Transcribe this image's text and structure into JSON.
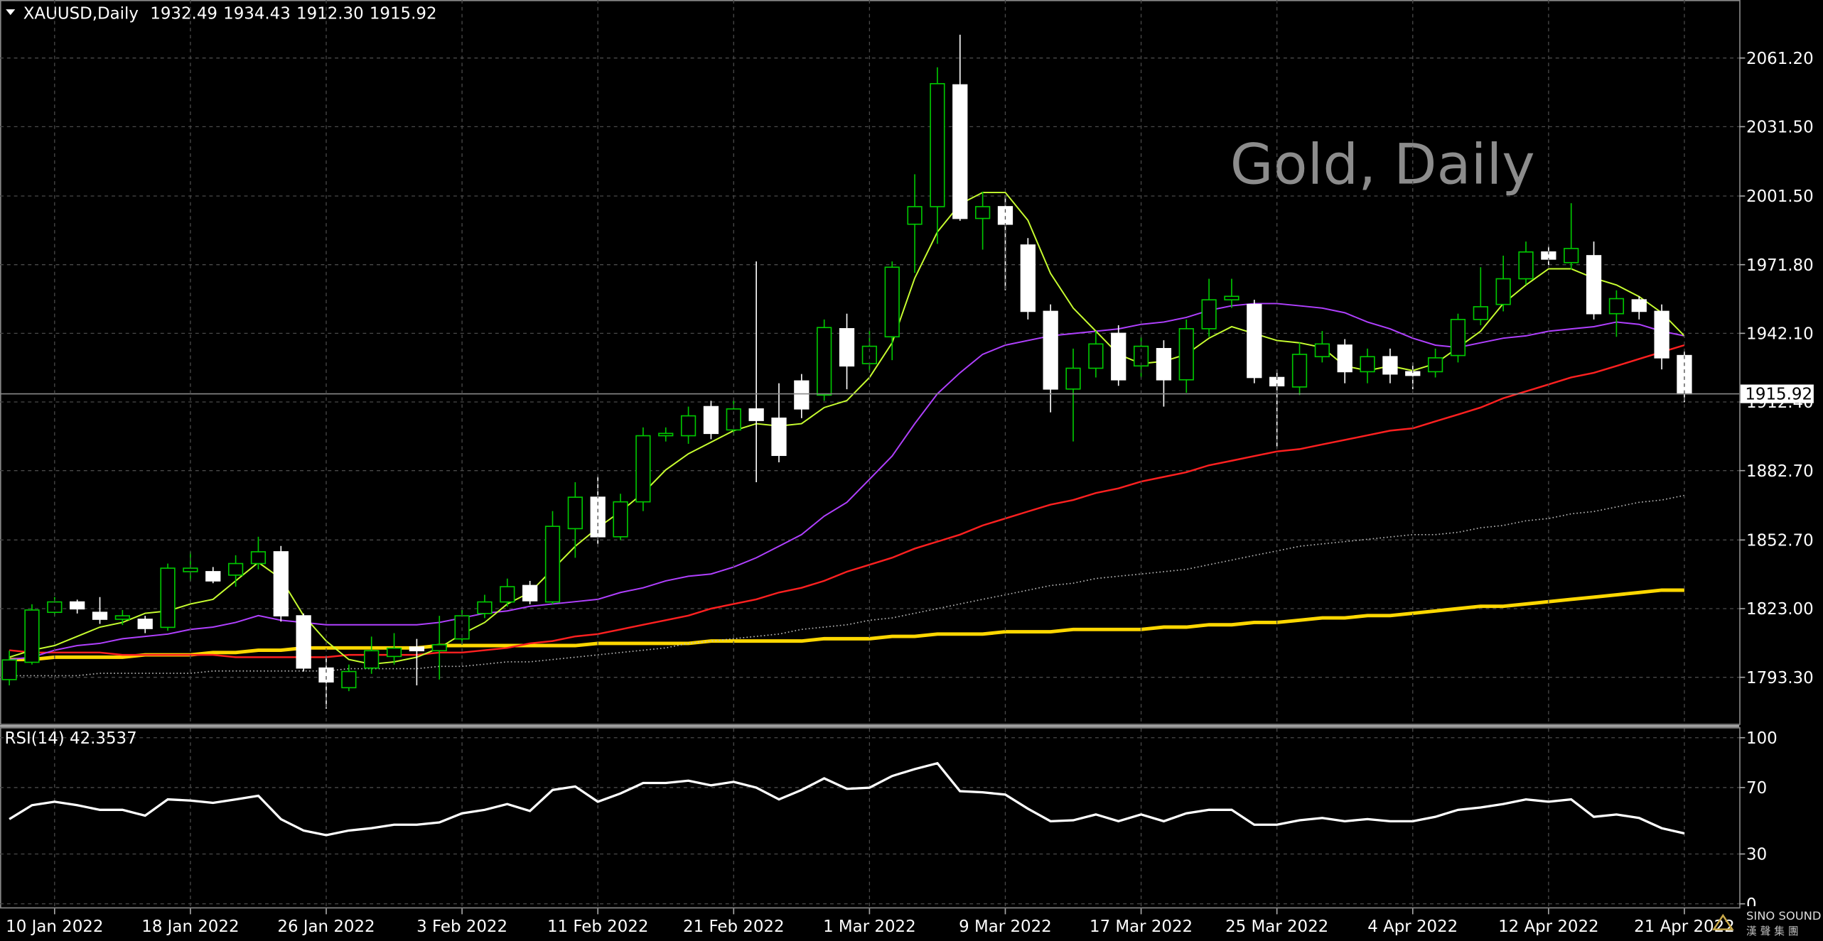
{
  "chart_data": [
    {
      "type": "candlestick",
      "title": "XAUUSD,Daily",
      "header_ohlc": [
        "1932.49",
        "1934.43",
        "1912.30",
        "1915.92"
      ],
      "watermark": "Gold, Daily",
      "categories": [
        null,
        null,
        "10 Jan 2022",
        null,
        null,
        null,
        null,
        null,
        "18 Jan 2022",
        null,
        null,
        null,
        null,
        null,
        "26 Jan 2022",
        null,
        null,
        null,
        null,
        null,
        "3 Feb 2022",
        null,
        null,
        null,
        null,
        null,
        "11 Feb 2022",
        null,
        null,
        null,
        null,
        null,
        "21 Feb 2022",
        null,
        null,
        null,
        null,
        null,
        "1 Mar 2022",
        null,
        null,
        null,
        null,
        null,
        "9 Mar 2022",
        null,
        null,
        null,
        null,
        null,
        "17 Mar 2022",
        null,
        null,
        null,
        null,
        null,
        "25 Mar 2022",
        null,
        null,
        null,
        null,
        null,
        "4 Apr 2022",
        null,
        null,
        null,
        null,
        null,
        "12 Apr 2022",
        null,
        null,
        null,
        null,
        null,
        "21 Apr 2022"
      ],
      "open": [
        1792.3,
        1799.8,
        1821.4,
        1825.9,
        1821.4,
        1818.4,
        1818.4,
        1814.9,
        1839.0,
        1839.0,
        1837.5,
        1842.5,
        1847.6,
        1819.9,
        1797.3,
        1788.8,
        1797.3,
        1802.3,
        1806.4,
        1804.8,
        1809.9,
        1820.9,
        1825.9,
        1833.0,
        1825.9,
        1857.6,
        1871.2,
        1854.1,
        1869.2,
        1897.8,
        1897.8,
        1910.4,
        1900.3,
        1909.4,
        1905.4,
        1921.5,
        1915.4,
        1944.1,
        1929.0,
        1940.6,
        1989.3,
        1996.9,
        2049.6,
        1991.8,
        1996.9,
        1980.3,
        1951.6,
        1918.0,
        1927.0,
        1942.1,
        1928.0,
        1935.5,
        1922.0,
        1944.1,
        1956.6,
        1954.6,
        1923.0,
        1918.9,
        1932.0,
        1937.0,
        1925.5,
        1932.0,
        1925.5,
        1925.5,
        1932.5,
        1948.1,
        1954.6,
        1965.7,
        1977.3,
        1972.7,
        1975.7,
        1950.6,
        1956.6,
        1951.6,
        1932.49
      ],
      "high": [
        1804.8,
        1824.9,
        1828.0,
        1826.9,
        1828.0,
        1822.4,
        1819.9,
        1842.5,
        1847.6,
        1841.0,
        1846.1,
        1854.1,
        1850.1,
        1820.9,
        1802.3,
        1798.8,
        1810.9,
        1812.4,
        1809.9,
        1819.9,
        1822.4,
        1829.0,
        1836.0,
        1835.0,
        1865.2,
        1877.7,
        1880.2,
        1872.7,
        1901.4,
        1901.4,
        1910.4,
        1912.9,
        1912.9,
        1973.2,
        1920.5,
        1924.5,
        1948.1,
        1950.6,
        1943.1,
        1973.2,
        2010.9,
        2057.2,
        2071.3,
        2003.4,
        2001.9,
        1983.3,
        1954.6,
        1935.5,
        1943.1,
        1945.6,
        1940.6,
        1939.1,
        1948.1,
        1965.7,
        1965.7,
        1956.6,
        1926.5,
        1938.1,
        1943.1,
        1939.6,
        1935.5,
        1935.5,
        1929.5,
        1935.5,
        1950.6,
        1970.7,
        1975.7,
        1981.8,
        1979.8,
        1998.4,
        1981.8,
        1960.7,
        1958.1,
        1954.6,
        1934.43
      ],
      "low": [
        1789.8,
        1798.8,
        1819.9,
        1820.9,
        1816.4,
        1815.9,
        1812.4,
        1813.4,
        1835.0,
        1834.0,
        1832.5,
        1840.0,
        1817.4,
        1795.8,
        1779.7,
        1787.3,
        1794.8,
        1798.8,
        1789.8,
        1792.3,
        1807.4,
        1818.9,
        1823.9,
        1824.9,
        1824.9,
        1845.0,
        1851.1,
        1852.6,
        1865.2,
        1895.3,
        1894.3,
        1896.3,
        1897.8,
        1877.7,
        1886.3,
        1905.4,
        1912.9,
        1917.9,
        1925.5,
        1930.5,
        1968.2,
        1980.8,
        1990.8,
        1978.3,
        1960.7,
        1948.1,
        1907.9,
        1895.3,
        1923.0,
        1919.4,
        1923.0,
        1910.4,
        1916.4,
        1940.6,
        1953.1,
        1920.5,
        1892.8,
        1915.4,
        1929.5,
        1920.5,
        1920.5,
        1920.5,
        1917.9,
        1923.0,
        1929.5,
        1945.6,
        1951.6,
        1963.2,
        1971.7,
        1969.7,
        1948.1,
        1940.6,
        1948.1,
        1926.5,
        1912.3
      ],
      "close": [
        1800.8,
        1822.4,
        1825.9,
        1822.9,
        1818.4,
        1819.9,
        1814.4,
        1840.5,
        1840.5,
        1835.0,
        1842.5,
        1847.6,
        1819.9,
        1797.3,
        1791.3,
        1795.8,
        1804.8,
        1805.9,
        1804.8,
        1807.4,
        1819.9,
        1825.9,
        1832.5,
        1826.4,
        1858.6,
        1871.2,
        1854.1,
        1869.2,
        1897.8,
        1898.8,
        1906.4,
        1898.8,
        1909.4,
        1904.4,
        1889.3,
        1909.4,
        1944.6,
        1928.0,
        1936.5,
        1970.7,
        1996.9,
        2050.1,
        1991.8,
        1996.9,
        1989.3,
        1951.6,
        1918.0,
        1927.0,
        1937.5,
        1922.0,
        1936.5,
        1922.0,
        1944.1,
        1956.6,
        1958.1,
        1923.0,
        1919.4,
        1933.0,
        1937.5,
        1925.5,
        1932.0,
        1924.5,
        1923.9,
        1931.5,
        1948.1,
        1953.6,
        1965.7,
        1977.3,
        1974.2,
        1978.8,
        1950.6,
        1957.1,
        1951.6,
        1931.5,
        1915.92
      ],
      "up_color": "#00c800",
      "down_color": "#ffffff",
      "lines": [
        {
          "color": "#ffd700",
          "width": 3,
          "dashed": false,
          "values": [
            1801,
            1801,
            1802,
            1802,
            1802,
            1802,
            1803,
            1803,
            1803,
            1804,
            1804,
            1805,
            1805,
            1806,
            1806,
            1806,
            1806,
            1806,
            1806,
            1807,
            1807,
            1807,
            1807,
            1807,
            1807,
            1807,
            1808,
            1808,
            1808,
            1808,
            1808,
            1809,
            1809,
            1809,
            1809,
            1809,
            1810,
            1810,
            1810,
            1811,
            1811,
            1812,
            1812,
            1812,
            1813,
            1813,
            1813,
            1814,
            1814,
            1814,
            1814,
            1815,
            1815,
            1816,
            1816,
            1817,
            1817,
            1818,
            1819,
            1819,
            1820,
            1820,
            1821,
            1822,
            1823,
            1824,
            1824,
            1825,
            1826,
            1827,
            1828,
            1829,
            1830,
            1831,
            1831
          ]
        },
        {
          "color": "#bbbbbb",
          "width": 1,
          "dashed": true,
          "values": [
            1794,
            1794,
            1794,
            1794,
            1795,
            1795,
            1795,
            1795,
            1795,
            1796,
            1796,
            1796,
            1796,
            1796,
            1796,
            1797,
            1797,
            1797,
            1797,
            1798,
            1798,
            1799,
            1800,
            1800,
            1801,
            1802,
            1803,
            1804,
            1805,
            1806,
            1808,
            1809,
            1810,
            1811,
            1812,
            1814,
            1815,
            1816,
            1818,
            1819,
            1821,
            1823,
            1825,
            1827,
            1829,
            1831,
            1833,
            1834,
            1836,
            1837,
            1838,
            1839,
            1840,
            1842,
            1844,
            1846,
            1848,
            1850,
            1851,
            1852,
            1853,
            1854,
            1855,
            1855,
            1856,
            1858,
            1859,
            1861,
            1862,
            1864,
            1865,
            1867,
            1869,
            1870,
            1872
          ]
        },
        {
          "color": "#ff2020",
          "width": 1.5,
          "dashed": false,
          "values": [
            1805,
            1804,
            1804,
            1804,
            1804,
            1803,
            1803,
            1803,
            1803,
            1803,
            1802,
            1802,
            1802,
            1802,
            1802,
            1803,
            1803,
            1803,
            1803,
            1804,
            1804,
            1805,
            1806,
            1808,
            1809,
            1811,
            1812,
            1814,
            1816,
            1818,
            1820,
            1823,
            1825,
            1827,
            1830,
            1832,
            1835,
            1839,
            1842,
            1845,
            1849,
            1852,
            1855,
            1859,
            1862,
            1865,
            1868,
            1870,
            1873,
            1875,
            1878,
            1880,
            1882,
            1885,
            1887,
            1889,
            1891,
            1892,
            1894,
            1896,
            1898,
            1900,
            1901,
            1904,
            1907,
            1910,
            1914,
            1917,
            1920,
            1923,
            1925,
            1928,
            1931,
            1934,
            1937
          ]
        },
        {
          "color": "#b040ff",
          "width": 1.2,
          "dashed": false,
          "values": [
            1801,
            1802,
            1805,
            1807,
            1808,
            1810,
            1811,
            1812,
            1814,
            1815,
            1817,
            1820,
            1818,
            1817,
            1816,
            1816,
            1816,
            1816,
            1816,
            1817,
            1819,
            1821,
            1822,
            1824,
            1825,
            1826,
            1827,
            1830,
            1832,
            1835,
            1837,
            1838,
            1841,
            1845,
            1850,
            1855,
            1863,
            1869,
            1879,
            1889,
            1903,
            1916,
            1925,
            1933,
            1937,
            1939,
            1941,
            1942,
            1943,
            1944,
            1946,
            1947,
            1949,
            1952,
            1954,
            1955,
            1955,
            1954,
            1953,
            1951,
            1947,
            1944,
            1940,
            1937,
            1936,
            1938,
            1940,
            1941,
            1943,
            1944,
            1945,
            1947,
            1946,
            1943,
            1941
          ]
        },
        {
          "color": "#c8ff30",
          "width": 1.2,
          "dashed": false,
          "values": [
            1802,
            1805,
            1807,
            1811,
            1815,
            1817,
            1821,
            1822,
            1825,
            1827,
            1835,
            1843,
            1836,
            1820,
            1809,
            1801,
            1799,
            1800,
            1802,
            1806,
            1812,
            1817,
            1825,
            1830,
            1840,
            1850,
            1858,
            1865,
            1873,
            1883,
            1890,
            1895,
            1900,
            1903,
            1902,
            1903,
            1910,
            1913,
            1923,
            1938,
            1966,
            1986,
            1998,
            2003,
            2003,
            1991,
            1968,
            1953,
            1943,
            1933,
            1929,
            1930,
            1933,
            1940,
            1945,
            1942,
            1939,
            1938,
            1936,
            1928,
            1926,
            1928,
            1926,
            1929,
            1936,
            1943,
            1955,
            1963,
            1970,
            1970,
            1966,
            1963,
            1958,
            1951,
            1941
          ]
        }
      ],
      "ylim": [
        1773.7,
        2086.3
      ],
      "yticks": [
        {
          "value": 1793.3,
          "label": "1793.30"
        },
        {
          "value": 1823.0,
          "label": "1823.00"
        },
        {
          "value": 1852.7,
          "label": "1852.70"
        },
        {
          "value": 1882.7,
          "label": "1882.70"
        },
        {
          "value": 1912.4,
          "label": "1912.40"
        },
        {
          "value": 1942.1,
          "label": "1942.10"
        },
        {
          "value": 1971.8,
          "label": "1971.80"
        },
        {
          "value": 2001.5,
          "label": "2001.50"
        },
        {
          "value": 2031.5,
          "label": "2031.50"
        },
        {
          "value": 2061.2,
          "label": "2061.20"
        }
      ],
      "price_line": {
        "value": 1915.92,
        "label": "1915.92"
      },
      "grid": true
    },
    {
      "type": "line",
      "title": "RSI(14) 42.3537",
      "color": "#ffffff",
      "values": [
        51.0,
        59.4,
        61.5,
        59.4,
        56.6,
        56.6,
        53.1,
        62.9,
        62.2,
        60.8,
        62.9,
        65.0,
        51.0,
        44.1,
        41.3,
        44.1,
        45.5,
        47.6,
        47.6,
        49.0,
        54.5,
        56.6,
        60.1,
        55.9,
        68.5,
        70.6,
        61.5,
        66.4,
        72.7,
        72.7,
        74.1,
        71.3,
        73.4,
        69.9,
        62.9,
        68.5,
        75.5,
        69.2,
        69.9,
        76.9,
        81.1,
        84.6,
        67.8,
        67.1,
        65.7,
        57.3,
        49.7,
        50.3,
        53.8,
        49.7,
        53.8,
        49.7,
        54.5,
        56.6,
        56.6,
        47.6,
        47.6,
        50.3,
        51.7,
        49.7,
        51.0,
        49.7,
        49.7,
        52.4,
        56.6,
        58.0,
        60.1,
        62.9,
        61.5,
        62.9,
        52.4,
        53.8,
        51.7,
        45.5,
        42.3537
      ],
      "ylim": [
        0,
        100
      ],
      "yticks": [
        0,
        30,
        70,
        100
      ],
      "grid": true
    }
  ],
  "logo": {
    "name": "SINO SOUND",
    "subtitle": "漢聲集團"
  }
}
